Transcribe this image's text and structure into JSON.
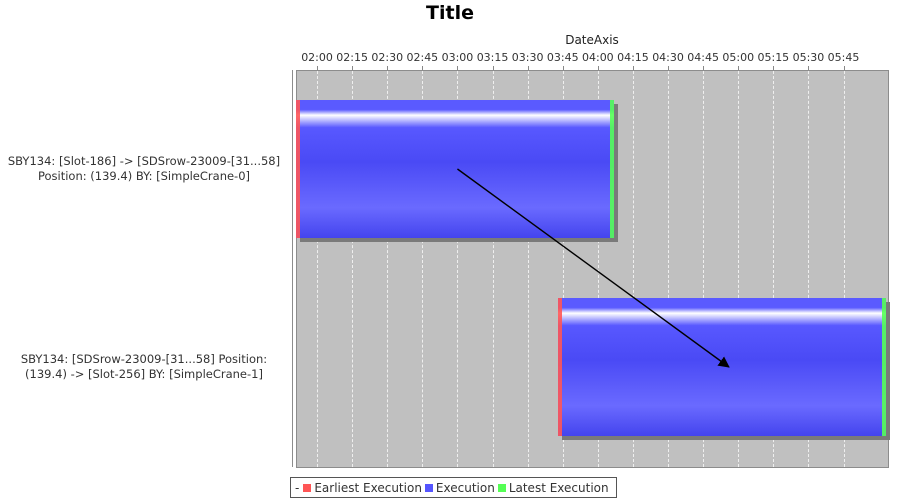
{
  "chart_data": {
    "type": "gantt",
    "title": "Title",
    "xlabel": "DateAxis",
    "x_range": [
      "01:51",
      "06:04"
    ],
    "x_ticks": [
      "02:00",
      "02:15",
      "02:30",
      "02:45",
      "03:00",
      "03:15",
      "03:30",
      "03:45",
      "04:00",
      "04:15",
      "04:30",
      "04:45",
      "05:00",
      "05:15",
      "05:30",
      "05:45"
    ],
    "grid": true,
    "tasks": [
      {
        "label_lines": [
          "SBY134: [Slot-186] -> [SDSrow-23009-[31...58]",
          "Position: (139.4) BY: [SimpleCrane-0]"
        ],
        "start": "01:51",
        "end": "04:07"
      },
      {
        "label_lines": [
          "SBY134: [SDSrow-23009-[31...58]  Position:",
          "(139.4) -> [Slot-256] BY: [SimpleCrane-1]"
        ],
        "start": "03:43",
        "end": "06:03"
      }
    ],
    "dependency": {
      "from_time": "03:00",
      "to_time": "04:56"
    },
    "legend_position": "bottom",
    "legend": [
      {
        "name": "Earliest Execution",
        "color": "#ff5555"
      },
      {
        "name": "Execution",
        "color": "#5555ff"
      },
      {
        "name": "Latest Execution",
        "color": "#55ff55"
      }
    ]
  },
  "legend_prefix": "-"
}
